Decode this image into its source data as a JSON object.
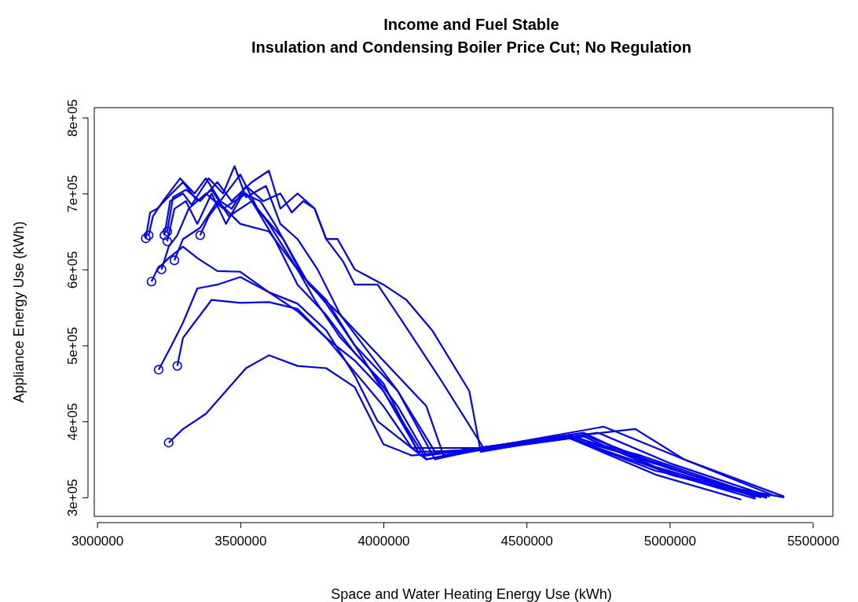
{
  "chart_data": {
    "type": "line",
    "title": "Income and Fuel Stable",
    "subtitle": "Insulation and Condensing Boiler Price Cut; No Regulation",
    "xlabel": "Space and Water Heating Energy Use (kWh)",
    "ylabel": "Appliance Energy Use (kWh)",
    "xlim": [
      2990000,
      5570000
    ],
    "ylim": [
      275000,
      813000
    ],
    "xticks": [
      3000000,
      3500000,
      4000000,
      4500000,
      5000000,
      5500000
    ],
    "yticks": [
      {
        "value": 300000,
        "label": "3e+05"
      },
      {
        "value": 400000,
        "label": "4e+05"
      },
      {
        "value": 500000,
        "label": "5e+05"
      },
      {
        "value": 600000,
        "label": "6e+05"
      },
      {
        "value": 700000,
        "label": "7e+05"
      },
      {
        "value": 800000,
        "label": "8e+05"
      }
    ],
    "grid": false,
    "line_style": "solid",
    "series": [
      {
        "type": "scatter",
        "marker": "circle",
        "color": "#0000ff",
        "x": [
          3250000,
          3215000,
          3280000,
          3190000,
          3270000,
          3225000,
          3170000,
          3180000,
          3235000,
          3245000,
          3245000,
          3360000
        ],
        "values": [
          372000,
          468000,
          473000,
          584000,
          612000,
          600000,
          641000,
          645000,
          645000,
          650000,
          637000,
          645000
        ]
      },
      {
        "color": "#0000ff",
        "x": [
          3250000,
          3300000,
          3380000,
          3450000,
          3520000,
          3600000,
          3700000,
          3800000,
          3900000,
          4000000,
          4100000,
          4350000,
          4650000,
          4900000,
          5100000,
          5300000
        ],
        "values": [
          372000,
          390000,
          410000,
          440000,
          470000,
          487000,
          473000,
          470000,
          445000,
          370000,
          355000,
          365000,
          378000,
          345000,
          320000,
          298000
        ]
      },
      {
        "color": "#0000ff",
        "x": [
          3215000,
          3260000,
          3300000,
          3350000,
          3420000,
          3500000,
          3600000,
          3700000,
          3800000,
          3900000,
          3980000,
          4150000,
          4350000,
          4650000,
          4950000,
          5350000
        ],
        "values": [
          468000,
          500000,
          530000,
          575000,
          580000,
          590000,
          570000,
          555000,
          520000,
          460000,
          400000,
          350000,
          363000,
          378000,
          335000,
          302000
        ]
      },
      {
        "color": "#0000ff",
        "x": [
          3280000,
          3300000,
          3340000,
          3400000,
          3500000,
          3600000,
          3700000,
          3800000,
          3900000,
          4000000,
          4100000,
          4350000,
          4650000,
          4900000,
          5250000,
          5400000
        ],
        "values": [
          473000,
          510000,
          530000,
          560000,
          556000,
          557000,
          548000,
          510000,
          465000,
          420000,
          365000,
          365000,
          380000,
          355000,
          310000,
          300000
        ]
      },
      {
        "color": "#0000ff",
        "x": [
          3190000,
          3210000,
          3250000,
          3300000,
          3350000,
          3420000,
          3500000,
          3600000,
          3700000,
          3800000,
          3900000,
          4000000,
          4150000,
          4350000,
          4700000,
          4950000,
          5300000
        ],
        "values": [
          584000,
          600000,
          615000,
          630000,
          615000,
          598000,
          597000,
          570000,
          545000,
          510000,
          480000,
          440000,
          350000,
          366000,
          385000,
          340000,
          302000
        ]
      },
      {
        "color": "#0000ff",
        "x": [
          3270000,
          3300000,
          3360000,
          3420000,
          3500000,
          3600000,
          3700000,
          3800000,
          3900000,
          4050000,
          4180000,
          4350000,
          4700000,
          5000000,
          5340000
        ],
        "values": [
          612000,
          640000,
          655000,
          690000,
          660000,
          650000,
          600000,
          555000,
          500000,
          440000,
          360000,
          364000,
          382000,
          338000,
          300000
        ]
      },
      {
        "color": "#0000ff",
        "x": [
          3225000,
          3250000,
          3280000,
          3320000,
          3380000,
          3440000,
          3520000,
          3600000,
          3700000,
          3760000,
          3850000,
          3950000,
          4050000,
          4150000,
          4350000,
          4650000,
          4950000,
          5250000
        ],
        "values": [
          600000,
          630000,
          645000,
          680000,
          700000,
          680000,
          700000,
          660000,
          600000,
          560000,
          510000,
          470000,
          420000,
          355000,
          365000,
          378000,
          330000,
          297000
        ]
      },
      {
        "color": "#0000ff",
        "x": [
          3170000,
          3185000,
          3210000,
          3260000,
          3300000,
          3350000,
          3400000,
          3460000,
          3540000,
          3620000,
          3700000,
          3800000,
          3900000,
          4000000,
          4120000,
          4350000,
          4700000,
          5000000,
          5320000
        ],
        "values": [
          641000,
          675000,
          680000,
          700000,
          715000,
          690000,
          705000,
          670000,
          690000,
          640000,
          580000,
          540000,
          490000,
          450000,
          360000,
          362000,
          380000,
          330000,
          300000
        ]
      },
      {
        "color": "#0000ff",
        "x": [
          3180000,
          3195000,
          3230000,
          3290000,
          3340000,
          3380000,
          3430000,
          3500000,
          3560000,
          3650000,
          3720000,
          3800000,
          3900000,
          4000000,
          4130000,
          4350000,
          4650000,
          4900000,
          5200000,
          5340000
        ],
        "values": [
          645000,
          670000,
          690000,
          720000,
          700000,
          720000,
          690000,
          725000,
          680000,
          640000,
          590000,
          560000,
          500000,
          440000,
          355000,
          366000,
          382000,
          350000,
          315000,
          299000
        ]
      },
      {
        "color": "#0000ff",
        "x": [
          3235000,
          3255000,
          3300000,
          3330000,
          3390000,
          3440000,
          3480000,
          3520000,
          3590000,
          3640000,
          3700000,
          3770000,
          3850000,
          3950000,
          4050000,
          4180000,
          4350000,
          4750000,
          5000000,
          5350000
        ],
        "values": [
          645000,
          690000,
          700000,
          685000,
          720000,
          700000,
          736000,
          695000,
          710000,
          660000,
          640000,
          600000,
          540000,
          490000,
          440000,
          350000,
          364000,
          385000,
          345000,
          301000
        ]
      },
      {
        "color": "#0000ff",
        "x": [
          3245000,
          3265000,
          3310000,
          3360000,
          3420000,
          3470000,
          3540000,
          3600000,
          3640000,
          3700000,
          3760000,
          3800000,
          3860000,
          3900000,
          3980000,
          4060000,
          4200000,
          4350000,
          4770000,
          5050000,
          5400000
        ],
        "values": [
          650000,
          695000,
          705000,
          690000,
          715000,
          690000,
          715000,
          730000,
          680000,
          700000,
          680000,
          640000,
          610000,
          580000,
          580000,
          535000,
          455000,
          365000,
          393000,
          350000,
          301000
        ]
      },
      {
        "color": "#0000ff",
        "x": [
          3245000,
          3270000,
          3310000,
          3350000,
          3400000,
          3450000,
          3510000,
          3570000,
          3620000,
          3680000,
          3740000,
          3850000,
          3950000,
          4050000,
          4150000,
          4210000,
          4350000,
          4650000,
          4960000,
          5300000
        ],
        "values": [
          637000,
          680000,
          690000,
          660000,
          700000,
          660000,
          700000,
          690000,
          660000,
          620000,
          580000,
          540000,
          500000,
          460000,
          420000,
          355000,
          366000,
          378000,
          345000,
          300000
        ]
      },
      {
        "color": "#0000ff",
        "x": [
          3360000,
          3390000,
          3430000,
          3470000,
          3520000,
          3580000,
          3640000,
          3680000,
          3720000,
          3760000,
          3800000,
          3840000,
          3900000,
          3950000,
          4000000,
          4080000,
          4170000,
          4300000,
          4340000,
          4650000,
          4880000,
          5050000,
          5360000
        ],
        "values": [
          645000,
          670000,
          690000,
          680000,
          710000,
          690000,
          700000,
          675000,
          690000,
          680000,
          640000,
          640000,
          600000,
          590000,
          580000,
          560000,
          520000,
          440000,
          360000,
          380000,
          390000,
          350000,
          303000
        ]
      }
    ]
  }
}
